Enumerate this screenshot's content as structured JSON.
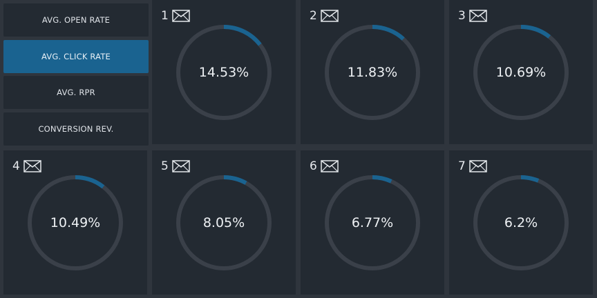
{
  "menu": {
    "items": [
      {
        "label": "AVG. OPEN RATE",
        "active": false
      },
      {
        "label": "AVG. CLICK RATE",
        "active": true
      },
      {
        "label": "AVG. RPR",
        "active": false
      },
      {
        "label": "CONVERSION REV.",
        "active": false
      }
    ]
  },
  "cards": [
    {
      "rank": "1",
      "icon": "envelope-icon",
      "value_label": "14.53%",
      "value": 14.53
    },
    {
      "rank": "2",
      "icon": "envelope-icon",
      "value_label": "11.83%",
      "value": 11.83
    },
    {
      "rank": "3",
      "icon": "envelope-icon",
      "value_label": "10.69%",
      "value": 10.69
    },
    {
      "rank": "4",
      "icon": "envelope-icon",
      "value_label": "10.49%",
      "value": 10.49
    },
    {
      "rank": "5",
      "icon": "envelope-icon",
      "value_label": "8.05%",
      "value": 8.05
    },
    {
      "rank": "6",
      "icon": "envelope-icon",
      "value_label": "6.77%",
      "value": 6.77
    },
    {
      "rank": "7",
      "icon": "envelope-icon",
      "value_label": "6.2%",
      "value": 6.2
    }
  ],
  "colors": {
    "accent": "#1a6390",
    "track": "#3a4049",
    "card_bg": "#232a32",
    "page_bg": "#2f353d"
  }
}
